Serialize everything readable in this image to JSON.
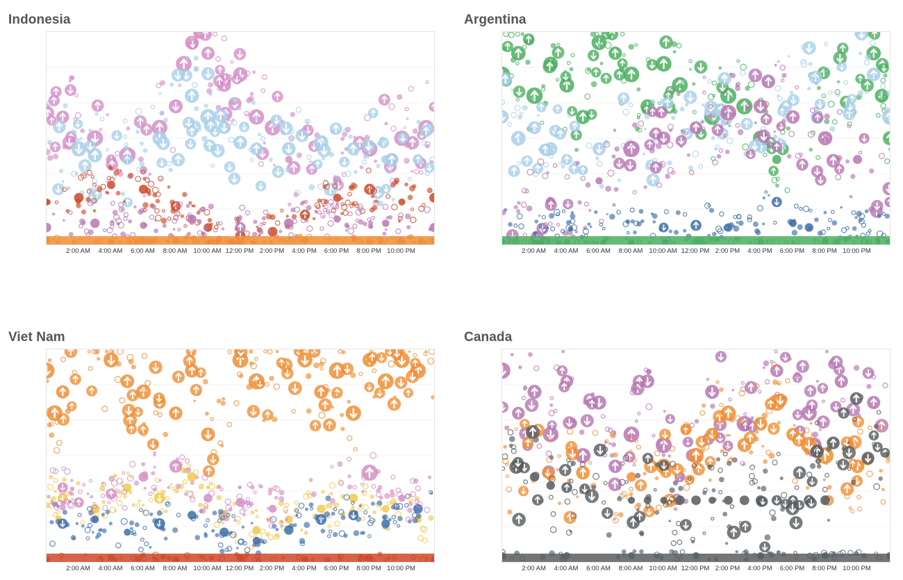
{
  "chart_data": [
    {
      "type": "scatter",
      "title": "Indonesia",
      "x_tick_labels": [
        "2:00 AM",
        "4:00 AM",
        "6:00 AM",
        "8:00 AM",
        "10:00 AM",
        "12:00 PM",
        "2:00 PM",
        "4:00 PM",
        "6:00 PM",
        "8:00 PM",
        "10:00 PM"
      ],
      "xlim": [
        0,
        24
      ],
      "ylim": [
        0,
        100
      ],
      "series": [
        {
          "name": "pink",
          "color": "#d48fc6",
          "values": [
            [
              4,
              40
            ],
            [
              6,
              35
            ],
            [
              7,
              55
            ],
            [
              8,
              65
            ],
            [
              8.5,
              85
            ],
            [
              9,
              95
            ],
            [
              9.5,
              100
            ],
            [
              10,
              90
            ],
            [
              11,
              75
            ],
            [
              12,
              80
            ],
            [
              13,
              60
            ],
            [
              14,
              55
            ],
            [
              15,
              40
            ],
            [
              18,
              30
            ],
            [
              20,
              45
            ],
            [
              22,
              50
            ],
            [
              23.5,
              55
            ],
            [
              1,
              60
            ],
            [
              3,
              50
            ],
            [
              5,
              42
            ]
          ],
          "note": "large arrow-down circles"
        },
        {
          "name": "light-blue",
          "color": "#a9cfe8",
          "values": [
            [
              2,
              45
            ],
            [
              3,
              42
            ],
            [
              5,
              40
            ],
            [
              7,
              50
            ],
            [
              9,
              70
            ],
            [
              10,
              60
            ],
            [
              11,
              55
            ],
            [
              12,
              48
            ],
            [
              13,
              45
            ],
            [
              15,
              45
            ],
            [
              17,
              48
            ],
            [
              19,
              45
            ],
            [
              21,
              40
            ],
            [
              23,
              40
            ]
          ]
        },
        {
          "name": "red",
          "color": "#cc4a2a",
          "values": [
            [
              0,
              20
            ],
            [
              2,
              22
            ],
            [
              4,
              28
            ],
            [
              6,
              26
            ],
            [
              8,
              18
            ],
            [
              10,
              8
            ],
            [
              12,
              4
            ],
            [
              14,
              6
            ],
            [
              16,
              14
            ],
            [
              18,
              22
            ],
            [
              20,
              26
            ],
            [
              22,
              20
            ],
            [
              24,
              22
            ]
          ]
        },
        {
          "name": "purple",
          "color": "#b777b2",
          "values": [
            [
              0,
              8
            ],
            [
              3,
              10
            ],
            [
              6,
              9
            ],
            [
              9,
              12
            ],
            [
              12,
              8
            ],
            [
              15,
              10
            ],
            [
              18,
              12
            ],
            [
              21,
              10
            ],
            [
              24,
              8
            ]
          ]
        },
        {
          "name": "orange",
          "color": "#f08e35",
          "values": [
            [
              0,
              2
            ],
            [
              4,
              1
            ],
            [
              8,
              2
            ],
            [
              12,
              1
            ],
            [
              16,
              2
            ],
            [
              20,
              1
            ],
            [
              24,
              2
            ]
          ]
        }
      ]
    },
    {
      "type": "scatter",
      "title": "Argentina",
      "x_tick_labels": [
        "2:00 AM",
        "4:00 AM",
        "6:00 AM",
        "8:00 AM",
        "10:00 AM",
        "12:00 PM",
        "2:00 PM",
        "4:00 PM",
        "6:00 PM",
        "8:00 PM",
        "10:00 PM"
      ],
      "xlim": [
        0,
        24
      ],
      "ylim": [
        0,
        100
      ],
      "series": [
        {
          "name": "green",
          "color": "#4caf60",
          "values": [
            [
              0,
              80
            ],
            [
              1,
              90
            ],
            [
              2,
              70
            ],
            [
              3,
              85
            ],
            [
              4,
              75
            ],
            [
              5,
              60
            ],
            [
              6,
              95
            ],
            [
              7,
              90
            ],
            [
              8,
              80
            ],
            [
              9,
              65
            ],
            [
              10,
              85
            ],
            [
              11,
              75
            ],
            [
              13,
              60
            ],
            [
              14,
              70
            ],
            [
              15,
              65
            ],
            [
              16,
              50
            ],
            [
              17,
              40
            ],
            [
              23,
              90
            ],
            [
              23.5,
              70
            ],
            [
              24,
              50
            ]
          ]
        },
        {
          "name": "light-blue",
          "color": "#a9cfe8",
          "values": [
            [
              0,
              60
            ],
            [
              1,
              50
            ],
            [
              2,
              55
            ],
            [
              3,
              45
            ],
            [
              4,
              40
            ],
            [
              5,
              35
            ],
            [
              6,
              45
            ],
            [
              23,
              80
            ],
            [
              24,
              60
            ]
          ]
        },
        {
          "name": "purple-arc",
          "color": "#b777b2",
          "values": [
            [
              3,
              20
            ],
            [
              6,
              30
            ],
            [
              8,
              45
            ],
            [
              10,
              50
            ],
            [
              12,
              55
            ],
            [
              14,
              62
            ],
            [
              16,
              65
            ],
            [
              18,
              60
            ],
            [
              20,
              50
            ],
            [
              22,
              40
            ],
            [
              24,
              20
            ]
          ]
        },
        {
          "name": "blue",
          "color": "#3d6ea8",
          "values": [
            [
              10,
              8
            ],
            [
              12,
              9
            ],
            [
              14,
              8
            ],
            [
              17,
              20
            ],
            [
              18,
              10
            ],
            [
              19,
              8
            ]
          ]
        },
        {
          "name": "green-base",
          "color": "#4caf60",
          "values": [
            [
              0,
              1
            ],
            [
              4,
              1
            ],
            [
              8,
              1
            ],
            [
              12,
              1
            ],
            [
              16,
              1
            ],
            [
              20,
              1
            ],
            [
              24,
              1
            ]
          ]
        }
      ]
    },
    {
      "type": "scatter",
      "title": "Viet Nam",
      "x_tick_labels": [
        "2:00 AM",
        "4:00 AM",
        "6:00 AM",
        "8:00 AM",
        "10:00 AM",
        "12:00 PM",
        "2:00 PM",
        "4:00 PM",
        "6:00 PM",
        "8:00 PM",
        "10:00 PM"
      ],
      "xlim": [
        0,
        24
      ],
      "ylim": [
        0,
        100
      ],
      "series": [
        {
          "name": "orange",
          "color": "#f08e35",
          "values": [
            [
              0,
              90
            ],
            [
              0.5,
              70
            ],
            [
              1,
              80
            ],
            [
              4,
              95
            ],
            [
              5,
              85
            ],
            [
              6,
              80
            ],
            [
              7,
              75
            ],
            [
              8,
              70
            ],
            [
              9,
              90
            ],
            [
              10,
              60
            ],
            [
              12,
              95
            ],
            [
              13,
              85
            ],
            [
              16,
              95
            ],
            [
              17,
              80
            ],
            [
              18,
              90
            ],
            [
              19,
              70
            ],
            [
              20,
              95
            ],
            [
              21,
              85
            ],
            [
              22,
              95
            ],
            [
              23,
              90
            ]
          ]
        },
        {
          "name": "yellow",
          "color": "#f2c94c",
          "values": [
            [
              1,
              30
            ],
            [
              3,
              25
            ],
            [
              5,
              35
            ],
            [
              7,
              30
            ],
            [
              9,
              40
            ],
            [
              11,
              22
            ],
            [
              13,
              15
            ],
            [
              15,
              20
            ],
            [
              17,
              25
            ],
            [
              19,
              30
            ],
            [
              21,
              25
            ],
            [
              23,
              20
            ]
          ]
        },
        {
          "name": "blue",
          "color": "#3d6ea8",
          "values": [
            [
              1,
              18
            ],
            [
              3,
              20
            ],
            [
              5,
              14
            ],
            [
              7,
              18
            ],
            [
              9,
              22
            ],
            [
              11,
              14
            ],
            [
              13,
              10
            ],
            [
              15,
              15
            ],
            [
              17,
              20
            ],
            [
              19,
              22
            ],
            [
              21,
              18
            ],
            [
              23,
              25
            ]
          ]
        },
        {
          "name": "pink",
          "color": "#d48fc6",
          "values": [
            [
              1,
              35
            ],
            [
              2,
              28
            ],
            [
              4,
              32
            ],
            [
              6,
              40
            ],
            [
              8,
              45
            ],
            [
              10,
              30
            ],
            [
              12,
              28
            ],
            [
              14,
              25
            ],
            [
              20,
              42
            ],
            [
              22,
              30
            ]
          ]
        },
        {
          "name": "red",
          "color": "#cc4a2a",
          "values": [
            [
              0,
              1
            ],
            [
              4,
              2
            ],
            [
              8,
              1
            ],
            [
              12,
              2
            ],
            [
              16,
              1
            ],
            [
              20,
              2
            ],
            [
              24,
              1
            ]
          ]
        }
      ]
    },
    {
      "type": "scatter",
      "title": "Canada",
      "x_tick_labels": [
        "2:00 AM",
        "4:00 AM",
        "6:00 AM",
        "8:00 AM",
        "10:00 AM",
        "12:00 PM",
        "2:00 PM",
        "4:00 PM",
        "6:00 PM",
        "8:00 PM",
        "10:00 PM"
      ],
      "xlim": [
        0,
        24
      ],
      "ylim": [
        0,
        100
      ],
      "series": [
        {
          "name": "purple",
          "color": "#b777b2",
          "values": [
            [
              0,
              90
            ],
            [
              1,
              70
            ],
            [
              2,
              80
            ],
            [
              3,
              60
            ],
            [
              4,
              85
            ],
            [
              5,
              50
            ],
            [
              6,
              75
            ],
            [
              7,
              45
            ],
            [
              8,
              60
            ],
            [
              9,
              85
            ],
            [
              10,
              55
            ],
            [
              11,
              40
            ],
            [
              13,
              80
            ],
            [
              15,
              65
            ],
            [
              17,
              90
            ],
            [
              19,
              70
            ],
            [
              21,
              85
            ],
            [
              23,
              75
            ]
          ]
        },
        {
          "name": "orange",
          "color": "#f08e35",
          "values": [
            [
              1,
              45
            ],
            [
              3,
              40
            ],
            [
              5,
              42
            ],
            [
              8,
              40
            ],
            [
              10,
              45
            ],
            [
              12,
              50
            ],
            [
              13,
              60
            ],
            [
              14,
              70
            ],
            [
              15,
              55
            ],
            [
              16,
              65
            ],
            [
              17,
              75
            ],
            [
              18,
              60
            ],
            [
              19,
              55
            ],
            [
              20,
              50
            ],
            [
              22,
              45
            ]
          ]
        },
        {
          "name": "dark-gray",
          "color": "#555a5e",
          "values": [
            [
              2,
              40
            ],
            [
              3,
              36
            ],
            [
              4,
              35
            ],
            [
              8,
              29
            ],
            [
              9,
              29
            ],
            [
              10,
              29
            ],
            [
              11,
              29
            ],
            [
              12,
              29
            ],
            [
              13,
              29
            ],
            [
              14,
              29
            ],
            [
              15,
              29
            ],
            [
              16,
              29
            ],
            [
              17,
              29
            ],
            [
              18,
              29
            ],
            [
              19,
              29
            ],
            [
              20,
              29
            ],
            [
              19.5,
              52
            ],
            [
              20.5,
              56
            ]
          ]
        },
        {
          "name": "gray-base",
          "color": "#5b5f63",
          "values": [
            [
              0,
              3
            ],
            [
              4,
              3
            ],
            [
              8,
              3
            ],
            [
              12,
              3
            ],
            [
              16,
              3
            ],
            [
              20,
              3
            ],
            [
              24,
              3
            ]
          ]
        }
      ]
    }
  ]
}
